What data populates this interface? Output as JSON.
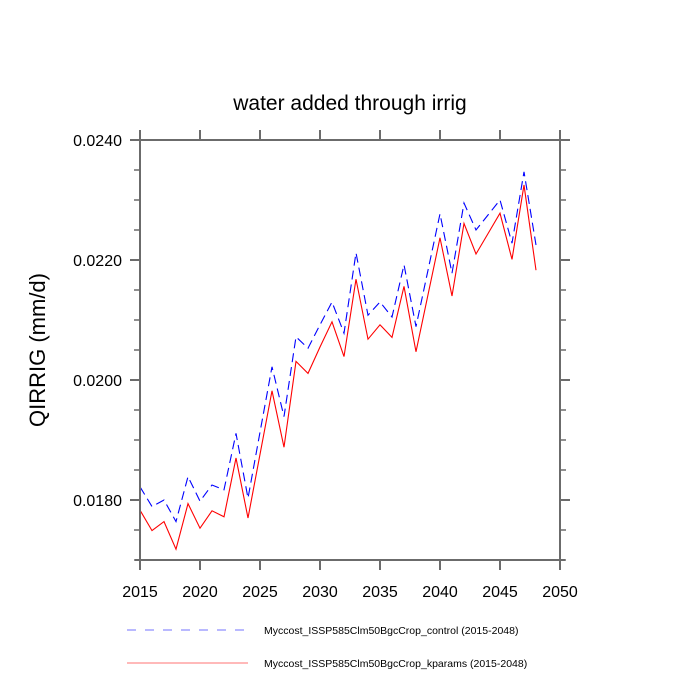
{
  "chart_data": {
    "type": "line",
    "title": "water added through irrig",
    "xlabel": "",
    "ylabel": "QIRRIG  (mm/d)",
    "xlim": [
      2015,
      2050
    ],
    "ylim": [
      0.017,
      0.024
    ],
    "x_major_ticks": [
      2015,
      2020,
      2025,
      2030,
      2035,
      2040,
      2045,
      2050
    ],
    "x_tick_labels": [
      "2015",
      "2020",
      "2025",
      "2030",
      "2035",
      "2040",
      "2045",
      "2050"
    ],
    "y_major_ticks": [
      0.018,
      0.02,
      0.022,
      0.024
    ],
    "y_tick_labels": [
      "0.0180",
      "0.0200",
      "0.0220",
      "0.0240"
    ],
    "y_minor_step": 0.0005,
    "grid": false,
    "legend_position": "bottom",
    "x": [
      2015,
      2016,
      2017,
      2018,
      2019,
      2020,
      2021,
      2022,
      2023,
      2024,
      2025,
      2026,
      2027,
      2028,
      2029,
      2030,
      2031,
      2032,
      2033,
      2034,
      2035,
      2036,
      2037,
      2038,
      2039,
      2040,
      2041,
      2042,
      2043,
      2044,
      2045,
      2046,
      2047,
      2048
    ],
    "series": [
      {
        "name": "Myccost_ISSP585Clm50BgcCrop_control (2015-2048)",
        "color": "#0000ff",
        "style": "dashed",
        "values": [
          0.01822,
          0.01789,
          0.018,
          0.01764,
          0.01839,
          0.01798,
          0.01825,
          0.01817,
          0.01911,
          0.01803,
          0.01913,
          0.02022,
          0.01939,
          0.02072,
          0.02053,
          0.02092,
          0.0213,
          0.02078,
          0.02212,
          0.02108,
          0.0213,
          0.02105,
          0.02192,
          0.02089,
          0.02183,
          0.02277,
          0.02178,
          0.02295,
          0.0225,
          0.02275,
          0.023,
          0.02228,
          0.02347,
          0.02225
        ]
      },
      {
        "name": "Myccost_ISSP585Clm50BgcCrop_kparams (2015-2048)",
        "color": "#ff0000",
        "style": "solid",
        "values": [
          0.01783,
          0.01749,
          0.01764,
          0.01718,
          0.01794,
          0.01753,
          0.01782,
          0.01772,
          0.0187,
          0.0177,
          0.01876,
          0.01982,
          0.01888,
          0.02031,
          0.02011,
          0.02055,
          0.02097,
          0.02039,
          0.02168,
          0.02068,
          0.02092,
          0.02071,
          0.02156,
          0.02047,
          0.02142,
          0.02237,
          0.0214,
          0.02261,
          0.0221,
          0.02244,
          0.02278,
          0.02201,
          0.02325,
          0.02183
        ]
      }
    ]
  }
}
